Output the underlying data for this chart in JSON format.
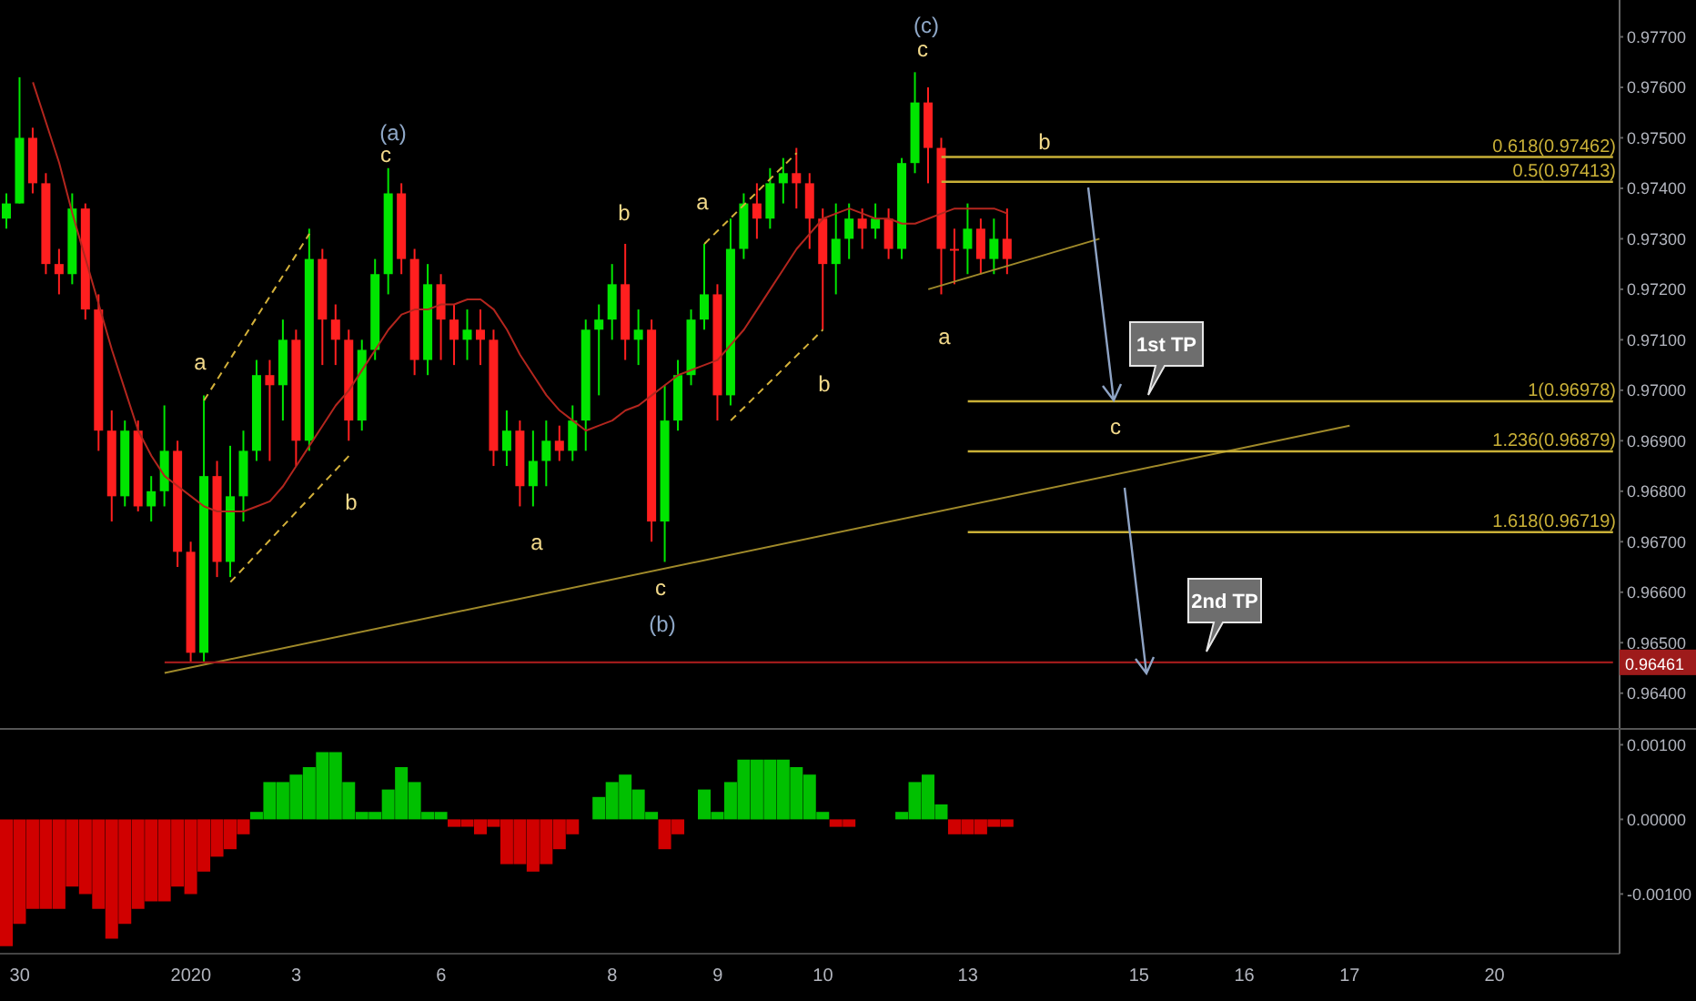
{
  "chart_data": [
    {
      "type": "candlestick",
      "categories": [
        null,
        "30",
        null,
        null,
        null,
        null,
        null,
        null,
        null,
        null,
        null,
        null,
        null,
        null,
        "2020",
        null,
        null,
        null,
        null,
        null,
        null,
        null,
        "3",
        null,
        null,
        null,
        null,
        null,
        null,
        null,
        null,
        null,
        null,
        "6",
        null,
        null,
        null,
        null,
        null,
        null,
        null,
        null,
        null,
        null,
        null,
        null,
        "8",
        null,
        null,
        null,
        null,
        null,
        null,
        null,
        "9",
        null,
        null,
        null,
        null,
        null,
        null,
        null,
        "10",
        null,
        null,
        null,
        null,
        null,
        null,
        null,
        null,
        null,
        null,
        "13",
        null,
        null,
        null,
        null,
        null,
        null,
        null,
        null,
        null,
        null,
        null,
        null,
        "15",
        null,
        null,
        null,
        null,
        null,
        null,
        null,
        "16",
        null,
        null,
        null,
        null,
        null,
        null,
        null,
        "17",
        null,
        null,
        null,
        null,
        null,
        null,
        null,
        null,
        null,
        null,
        "20",
        null,
        null,
        null,
        null,
        null,
        null,
        null,
        null,
        null
      ],
      "ohlc": [
        [
          0.9734,
          0.9739,
          0.9732,
          0.9737
        ],
        [
          0.9737,
          0.9762,
          0.9737,
          0.975
        ],
        [
          0.975,
          0.9752,
          0.9739,
          0.9741
        ],
        [
          0.9741,
          0.9743,
          0.9723,
          0.9725
        ],
        [
          0.9725,
          0.9728,
          0.9719,
          0.9723
        ],
        [
          0.9723,
          0.9739,
          0.9721,
          0.9736
        ],
        [
          0.9736,
          0.9737,
          0.9714,
          0.9716
        ],
        [
          0.9716,
          0.9719,
          0.9688,
          0.9692
        ],
        [
          0.9692,
          0.9696,
          0.9674,
          0.9679
        ],
        [
          0.9679,
          0.9694,
          0.9677,
          0.9692
        ],
        [
          0.9692,
          0.9694,
          0.9676,
          0.9677
        ],
        [
          0.9677,
          0.9683,
          0.9674,
          0.968
        ],
        [
          0.968,
          0.9697,
          0.9677,
          0.9688
        ],
        [
          0.9688,
          0.969,
          0.9665,
          0.9668
        ],
        [
          0.9668,
          0.967,
          0.9646,
          0.9648
        ],
        [
          0.9648,
          0.9699,
          0.9646,
          0.9683
        ],
        [
          0.9683,
          0.9686,
          0.9663,
          0.9666
        ],
        [
          0.9666,
          0.9689,
          0.9663,
          0.9679
        ],
        [
          0.9679,
          0.9692,
          0.9674,
          0.9688
        ],
        [
          0.9688,
          0.9706,
          0.9686,
          0.9703
        ],
        [
          0.9703,
          0.9706,
          0.9686,
          0.9701
        ],
        [
          0.9701,
          0.9714,
          0.9694,
          0.971
        ],
        [
          0.971,
          0.9712,
          0.9685,
          0.969
        ],
        [
          0.969,
          0.9732,
          0.9688,
          0.9726
        ],
        [
          0.9726,
          0.9728,
          0.9705,
          0.9714
        ],
        [
          0.9714,
          0.9717,
          0.9705,
          0.971
        ],
        [
          0.971,
          0.9712,
          0.969,
          0.9694
        ],
        [
          0.9694,
          0.971,
          0.9692,
          0.9708
        ],
        [
          0.9708,
          0.9726,
          0.9706,
          0.9723
        ],
        [
          0.9723,
          0.9744,
          0.9719,
          0.9739
        ],
        [
          0.9739,
          0.9741,
          0.9723,
          0.9726
        ],
        [
          0.9726,
          0.9728,
          0.9703,
          0.9706
        ],
        [
          0.9706,
          0.9725,
          0.9703,
          0.9721
        ],
        [
          0.9721,
          0.9723,
          0.9706,
          0.9714
        ],
        [
          0.9714,
          0.9717,
          0.9705,
          0.971
        ],
        [
          0.971,
          0.9716,
          0.9706,
          0.9712
        ],
        [
          0.9712,
          0.9716,
          0.9705,
          0.971
        ],
        [
          0.971,
          0.9712,
          0.9685,
          0.9688
        ],
        [
          0.9688,
          0.9696,
          0.9685,
          0.9692
        ],
        [
          0.9692,
          0.9694,
          0.9677,
          0.9681
        ],
        [
          0.9681,
          0.9692,
          0.9677,
          0.9686
        ],
        [
          0.9686,
          0.9694,
          0.9681,
          0.969
        ],
        [
          0.969,
          0.9693,
          0.9686,
          0.9688
        ],
        [
          0.9688,
          0.9697,
          0.9686,
          0.9694
        ],
        [
          0.9694,
          0.9714,
          0.9688,
          0.9712
        ],
        [
          0.9712,
          0.9717,
          0.9699,
          0.9714
        ],
        [
          0.9714,
          0.9725,
          0.971,
          0.9721
        ],
        [
          0.9721,
          0.9729,
          0.9706,
          0.971
        ],
        [
          0.971,
          0.9716,
          0.9705,
          0.9712
        ],
        [
          0.9712,
          0.9714,
          0.967,
          0.9674
        ],
        [
          0.9674,
          0.9701,
          0.9666,
          0.9694
        ],
        [
          0.9694,
          0.9706,
          0.9692,
          0.9703
        ],
        [
          0.9703,
          0.9716,
          0.9701,
          0.9714
        ],
        [
          0.9714,
          0.9729,
          0.9712,
          0.9719
        ],
        [
          0.9719,
          0.9721,
          0.9694,
          0.9699
        ],
        [
          0.9699,
          0.9734,
          0.9697,
          0.9728
        ],
        [
          0.9728,
          0.9739,
          0.9726,
          0.9737
        ],
        [
          0.9737,
          0.9741,
          0.973,
          0.9734
        ],
        [
          0.9734,
          0.9744,
          0.9732,
          0.9741
        ],
        [
          0.9741,
          0.9746,
          0.9737,
          0.9743
        ],
        [
          0.9743,
          0.9748,
          0.9736,
          0.9741
        ],
        [
          0.9741,
          0.9743,
          0.9728,
          0.9734
        ],
        [
          0.9734,
          0.9736,
          0.9712,
          0.9725
        ],
        [
          0.9725,
          0.9737,
          0.9719,
          0.973
        ],
        [
          0.973,
          0.9737,
          0.9726,
          0.9734
        ],
        [
          0.9734,
          0.9736,
          0.9728,
          0.9732
        ],
        [
          0.9732,
          0.9737,
          0.973,
          0.9734
        ],
        [
          0.9734,
          0.9736,
          0.9726,
          0.9728
        ],
        [
          0.9728,
          0.9746,
          0.9726,
          0.9745
        ],
        [
          0.9745,
          0.9763,
          0.9743,
          0.9757
        ],
        [
          0.9757,
          0.976,
          0.9741,
          0.9748
        ],
        [
          0.9748,
          0.975,
          0.9719,
          0.9728
        ],
        [
          0.9728,
          0.9732,
          0.9721,
          0.9728
        ],
        [
          0.9728,
          0.9737,
          0.9723,
          0.9732
        ],
        [
          0.9732,
          0.9734,
          0.9723,
          0.9726
        ],
        [
          0.9726,
          0.9734,
          0.9723,
          0.973
        ],
        [
          0.973,
          0.9736,
          0.9723,
          0.9726
        ],
        null,
        null,
        null,
        null,
        null,
        null,
        null,
        null,
        null,
        null,
        null,
        null,
        null,
        null,
        null,
        null,
        null,
        null,
        null,
        null,
        null,
        null,
        null,
        null,
        null,
        null,
        null,
        null,
        null,
        null,
        null,
        null,
        null,
        null,
        null,
        null,
        null,
        null,
        null,
        null,
        null,
        null,
        null,
        null,
        null,
        null
      ],
      "colors": [
        "#00e600",
        "#00e600",
        "#ff1f1f",
        "#ff1f1f",
        "#ff1f1f",
        "#00e600",
        "#ff1f1f",
        "#ff1f1f",
        "#ff1f1f",
        "#00e600",
        "#ff1f1f",
        "#00e600",
        "#00e600",
        "#ff1f1f",
        "#ff1f1f",
        "#00e600",
        "#ff1f1f",
        "#00e600",
        "#00e600",
        "#00e600",
        "#ff1f1f",
        "#00e600",
        "#ff1f1f",
        "#00e600",
        "#ff1f1f",
        "#ff1f1f",
        "#ff1f1f",
        "#00e600",
        "#00e600",
        "#00e600",
        "#ff1f1f",
        "#ff1f1f",
        "#00e600",
        "#ff1f1f",
        "#ff1f1f",
        "#00e600",
        "#ff1f1f",
        "#ff1f1f",
        "#00e600",
        "#ff1f1f",
        "#00e600",
        "#00e600",
        "#ff1f1f",
        "#00e600",
        "#00e600",
        "#00e600",
        "#00e600",
        "#ff1f1f",
        "#00e600",
        "#ff1f1f",
        "#00e600",
        "#00e600",
        "#00e600",
        "#00e600",
        "#ff1f1f",
        "#00e600",
        "#00e600",
        "#ff1f1f",
        "#00e600",
        "#00e600",
        "#ff1f1f",
        "#ff1f1f",
        "#ff1f1f",
        "#00e600",
        "#00e600",
        "#ff1f1f",
        "#00e600",
        "#ff1f1f",
        "#00e600",
        "#00e600",
        "#ff1f1f",
        "#ff1f1f",
        "#ff1f1f",
        "#00e600",
        "#ff1f1f",
        "#00e600",
        "#ff1f1f",
        null,
        null,
        null,
        null,
        null,
        null,
        null,
        null,
        null,
        null,
        null,
        null,
        null,
        null,
        null,
        null,
        null,
        null,
        null,
        null,
        null,
        null,
        null,
        null,
        null,
        null,
        null,
        null,
        null,
        null,
        null,
        null,
        null,
        null,
        null,
        null,
        null,
        null,
        null,
        null,
        null,
        null,
        null,
        null,
        null,
        null
      ],
      "series": [
        {
          "type": "line",
          "color": "#b3261e",
          "values": [
            null,
            null,
            0.9761,
            0.9753,
            0.9745,
            0.9735,
            0.9726,
            0.9717,
            0.9708,
            0.97,
            0.9692,
            0.9687,
            0.9683,
            0.9681,
            0.9679,
            0.9677,
            0.9676,
            0.9676,
            0.9676,
            0.9677,
            0.9678,
            0.9681,
            0.9685,
            0.9689,
            0.9693,
            0.9697,
            0.97,
            0.9704,
            0.9708,
            0.9712,
            0.9715,
            0.9716,
            0.9716,
            0.9717,
            0.9717,
            0.9718,
            0.9718,
            0.9716,
            0.9712,
            0.9707,
            0.9703,
            0.9699,
            0.9696,
            0.9694,
            0.9692,
            0.9693,
            0.9694,
            0.9696,
            0.9697,
            0.9699,
            0.9701,
            0.9703,
            0.9704,
            0.9705,
            0.9706,
            0.9709,
            0.9712,
            0.9716,
            0.972,
            0.9724,
            0.9728,
            0.9731,
            0.9734,
            0.9735,
            0.9736,
            0.9735,
            0.9734,
            0.9734,
            0.9733,
            0.9733,
            0.9734,
            0.9735,
            0.9736,
            0.9736,
            0.9736,
            0.9736,
            0.9735,
            null,
            null,
            null,
            null,
            null,
            null,
            null,
            null,
            null,
            null,
            null,
            null,
            null,
            null,
            null,
            null,
            null,
            null,
            null,
            null,
            null,
            null,
            null,
            null,
            null,
            null,
            null,
            null,
            null,
            null,
            null,
            null,
            null,
            null,
            null,
            null,
            null,
            null,
            null,
            null,
            null,
            null,
            null,
            null,
            null,
            null
          ]
        },
        {
          "type": "line",
          "color": "#a08a2a",
          "values": [
            null,
            null,
            null,
            null,
            null,
            null,
            null,
            null,
            null,
            null,
            null,
            null,
            0.9644,
            null,
            null,
            null,
            null,
            null,
            null,
            null,
            null,
            null,
            null,
            null,
            null,
            null,
            null,
            null,
            null,
            null,
            null,
            null,
            null,
            null,
            null,
            null,
            null,
            null,
            null,
            null,
            null,
            null,
            null,
            null,
            null,
            null,
            null,
            null,
            null,
            null,
            null,
            null,
            null,
            null,
            null,
            null,
            null,
            null,
            null,
            null,
            null,
            null,
            null,
            null,
            null,
            null,
            null,
            null,
            null,
            null,
            null,
            null,
            null,
            null,
            null,
            null,
            null,
            null,
            null,
            null,
            null,
            null,
            null,
            null,
            null,
            null,
            null,
            null,
            null,
            null,
            null,
            null,
            null,
            null,
            null,
            null,
            null,
            null,
            null,
            null,
            null,
            null,
            0.9693,
            null,
            null,
            null,
            null,
            null,
            null,
            null,
            null,
            null,
            null,
            null,
            null,
            null,
            null,
            null,
            null,
            null,
            null,
            null,
            null
          ]
        },
        {
          "type": "line",
          "color": "#a08a2a",
          "values": [
            null,
            null,
            null,
            null,
            null,
            null,
            null,
            null,
            null,
            null,
            null,
            null,
            null,
            null,
            null,
            null,
            null,
            null,
            null,
            null,
            null,
            null,
            null,
            null,
            null,
            null,
            null,
            null,
            null,
            null,
            null,
            null,
            null,
            null,
            null,
            null,
            null,
            null,
            null,
            null,
            null,
            null,
            null,
            null,
            null,
            null,
            null,
            null,
            null,
            null,
            null,
            null,
            null,
            null,
            null,
            null,
            null,
            null,
            null,
            null,
            null,
            null,
            null,
            null,
            null,
            null,
            null,
            null,
            null,
            null,
            0.972,
            null,
            null,
            null,
            null,
            null,
            null,
            null,
            null,
            null,
            null,
            null,
            null,
            0.973,
            null,
            null,
            null,
            null,
            null,
            null,
            null,
            null,
            null,
            null,
            null,
            null,
            null,
            null,
            null,
            null,
            null,
            null,
            null,
            null,
            null,
            null,
            null,
            null,
            null,
            null,
            null,
            null,
            null,
            null,
            null,
            null,
            null,
            null,
            null,
            null,
            null,
            null,
            null
          ]
        },
        {
          "type": "line",
          "color": "#d4b13a",
          "line_style": "dashed",
          "values": [
            null,
            null,
            null,
            null,
            null,
            null,
            null,
            null,
            null,
            null,
            null,
            null,
            null,
            null,
            null,
            0.9698,
            null,
            null,
            null,
            null,
            null,
            null,
            null,
            0.9731,
            null,
            null,
            null,
            null,
            null,
            null,
            null,
            null,
            null,
            null,
            null,
            null,
            null,
            null,
            null,
            null,
            null,
            null,
            null,
            null,
            null,
            null,
            null,
            null,
            null,
            null,
            null,
            null,
            null,
            null,
            null,
            null,
            null,
            null,
            null,
            null,
            null,
            null,
            null,
            null,
            null,
            null,
            null,
            null,
            null,
            null,
            null,
            null,
            null,
            null,
            null,
            null,
            null,
            null,
            null,
            null,
            null,
            null,
            null,
            null,
            null,
            null,
            null,
            null,
            null,
            null,
            null,
            null,
            null,
            null,
            null,
            null,
            null,
            null,
            null,
            null,
            null,
            null,
            null,
            null,
            null,
            null,
            null,
            null,
            null,
            null,
            null,
            null,
            null,
            null,
            null,
            null,
            null,
            null,
            null,
            null,
            null,
            null,
            null
          ]
        },
        {
          "type": "line",
          "color": "#d4b13a",
          "line_style": "dashed",
          "values": [
            null,
            null,
            null,
            null,
            null,
            null,
            null,
            null,
            null,
            null,
            null,
            null,
            null,
            null,
            null,
            null,
            null,
            0.9662,
            null,
            null,
            null,
            null,
            null,
            null,
            null,
            null,
            0.9687,
            null,
            null,
            null,
            null,
            null,
            null,
            null,
            null,
            null,
            null,
            null,
            null,
            null,
            null,
            null,
            null,
            null,
            null,
            null,
            null,
            null,
            null,
            null,
            null,
            null,
            null,
            null,
            null,
            null,
            null,
            null,
            null,
            null,
            null,
            null,
            null,
            null,
            null,
            null,
            null,
            null,
            null,
            null,
            null,
            null,
            null,
            null,
            null,
            null,
            null,
            null,
            null,
            null,
            null,
            null,
            null,
            null,
            null,
            null,
            null,
            null,
            null,
            null,
            null,
            null,
            null,
            null,
            null,
            null,
            null,
            null,
            null,
            null,
            null,
            null,
            null,
            null,
            null,
            null,
            null,
            null,
            null,
            null,
            null,
            null,
            null,
            null,
            null,
            null,
            null,
            null,
            null,
            null,
            null,
            null,
            null
          ]
        },
        {
          "type": "line",
          "color": "#d4b13a",
          "line_style": "dashed",
          "values": [
            null,
            null,
            null,
            null,
            null,
            null,
            null,
            null,
            null,
            null,
            null,
            null,
            null,
            null,
            null,
            null,
            null,
            null,
            null,
            null,
            null,
            null,
            null,
            null,
            null,
            null,
            null,
            null,
            null,
            null,
            null,
            null,
            null,
            null,
            null,
            null,
            null,
            null,
            null,
            null,
            null,
            null,
            null,
            null,
            null,
            null,
            null,
            null,
            null,
            null,
            null,
            null,
            null,
            0.9729,
            null,
            null,
            null,
            null,
            null,
            null,
            0.9747,
            null,
            null,
            null,
            null,
            null,
            null,
            null,
            null,
            null,
            null,
            null,
            null,
            null,
            null,
            null,
            null,
            null,
            null,
            null,
            null,
            null,
            null,
            null,
            null,
            null,
            null,
            null,
            null,
            null,
            null,
            null,
            null,
            null,
            null,
            null,
            null,
            null,
            null,
            null,
            null,
            null,
            null,
            null,
            null,
            null,
            null,
            null,
            null,
            null,
            null,
            null,
            null,
            null,
            null,
            null,
            null,
            null,
            null,
            null,
            null,
            null,
            null
          ]
        },
        {
          "type": "line",
          "color": "#d4b13a",
          "line_style": "dashed",
          "values": [
            null,
            null,
            null,
            null,
            null,
            null,
            null,
            null,
            null,
            null,
            null,
            null,
            null,
            null,
            null,
            null,
            null,
            null,
            null,
            null,
            null,
            null,
            null,
            null,
            null,
            null,
            null,
            null,
            null,
            null,
            null,
            null,
            null,
            null,
            null,
            null,
            null,
            null,
            null,
            null,
            null,
            null,
            null,
            null,
            null,
            null,
            null,
            null,
            null,
            null,
            null,
            null,
            null,
            null,
            null,
            0.9694,
            null,
            null,
            null,
            null,
            null,
            null,
            0.9712,
            null,
            null,
            null,
            null,
            null,
            null,
            null,
            null,
            null,
            null,
            null,
            null,
            null,
            null,
            null,
            null,
            null,
            null,
            null,
            null,
            null,
            null,
            null,
            null,
            null,
            null,
            null,
            null,
            null,
            null,
            null,
            null,
            null,
            null,
            null,
            null,
            null,
            null,
            null,
            null,
            null,
            null,
            null,
            null,
            null,
            null,
            null,
            null,
            null,
            null,
            null,
            null,
            null,
            null,
            null,
            null,
            null,
            null,
            null,
            null
          ]
        }
      ],
      "ylim": [
        0.96331,
        0.97773
      ],
      "yticks": [
        {
          "value": 0.964,
          "label": "0.96400"
        },
        {
          "value": 0.965,
          "label": "0.96500"
        },
        {
          "value": 0.966,
          "label": "0.96600"
        },
        {
          "value": 0.967,
          "label": "0.96700"
        },
        {
          "value": 0.968,
          "label": "0.96800"
        },
        {
          "value": 0.969,
          "label": "0.96900"
        },
        {
          "value": 0.97,
          "label": "0.97000"
        },
        {
          "value": 0.971,
          "label": "0.97100"
        },
        {
          "value": 0.972,
          "label": "0.97200"
        },
        {
          "value": 0.973,
          "label": "0.97300"
        },
        {
          "value": 0.974,
          "label": "0.97400"
        },
        {
          "value": 0.975,
          "label": "0.97500"
        },
        {
          "value": 0.976,
          "label": "0.97600"
        },
        {
          "value": 0.977,
          "label": "0.97700"
        }
      ],
      "ref_lines": [
        {
          "axis": "y",
          "value": 0.97462,
          "label": "0.618(0.97462)",
          "color": "#c9b037"
        },
        {
          "axis": "y",
          "value": 0.97413,
          "label": "0.5(0.97413)",
          "color": "#c9b037"
        },
        {
          "axis": "y",
          "value": 0.96978,
          "label": "1(0.96978)",
          "color": "#c9b037"
        },
        {
          "axis": "y",
          "value": 0.96879,
          "label": "1.236(0.96879)",
          "color": "#c9b037"
        },
        {
          "axis": "y",
          "value": 0.96719,
          "label": "1.618(0.96719)",
          "color": "#c9b037"
        },
        {
          "axis": "y",
          "value": 0.96461,
          "label": "0.96461",
          "color": "#9e1b1b"
        }
      ],
      "annotations": [
        "(c)",
        "c",
        "(a)",
        "c",
        "b",
        "a",
        "b",
        "a",
        "1st TP",
        "a",
        "b",
        {
          "text": "c",
          "y": 0.96978
        },
        "b",
        "a",
        "c",
        "2nd TP",
        "(b)"
      ],
      "tick_labels": "y"
    },
    {
      "type": "bar",
      "categories": [
        null,
        "30",
        null,
        null,
        null,
        null,
        null,
        null,
        null,
        null,
        null,
        null,
        null,
        null,
        "2020",
        null,
        null,
        null,
        null,
        null,
        null,
        null,
        "3",
        null,
        null,
        null,
        null,
        null,
        null,
        null,
        null,
        null,
        null,
        "6",
        null,
        null,
        null,
        null,
        null,
        null,
        null,
        null,
        null,
        null,
        null,
        null,
        "8",
        null,
        null,
        null,
        null,
        null,
        null,
        null,
        "9",
        null,
        null,
        null,
        null,
        null,
        null,
        null,
        "10",
        null,
        null,
        null,
        null,
        null,
        null,
        null,
        null,
        null,
        null,
        "13",
        null,
        null,
        null,
        null,
        null,
        null,
        null,
        null,
        null,
        null,
        null,
        null,
        "15",
        null,
        null,
        null,
        null,
        null,
        null,
        null,
        "16",
        null,
        null,
        null,
        null,
        null,
        null,
        null,
        "17",
        null,
        null,
        null,
        null,
        null,
        null,
        null,
        null,
        null,
        null,
        "20",
        null,
        null,
        null,
        null,
        null,
        null,
        null,
        null,
        null
      ],
      "values": [
        -0.0017,
        -0.0014,
        -0.0012,
        -0.0012,
        -0.0012,
        -0.0009,
        -0.001,
        -0.0012,
        -0.0016,
        -0.0014,
        -0.0012,
        -0.0011,
        -0.0011,
        -0.0009,
        -0.001,
        -0.0007,
        -0.0005,
        -0.0004,
        -0.0002,
        0.0001,
        0.0005,
        0.0005,
        0.0006,
        0.0007,
        0.0009,
        0.0009,
        0.0005,
        0.0001,
        0.0001,
        0.0004,
        0.0007,
        0.0005,
        0.0001,
        0.0001,
        -0.0001,
        -0.0001,
        -0.0002,
        -0.0001,
        -0.0006,
        -0.0006,
        -0.0007,
        -0.0006,
        -0.0004,
        -0.0002,
        0,
        0.0003,
        0.0005,
        0.0006,
        0.0004,
        0.0001,
        -0.0004,
        -0.0002,
        0,
        0.0004,
        0.0001,
        0.0005,
        0.0008,
        0.0008,
        0.0008,
        0.0008,
        0.0007,
        0.0006,
        0.0001,
        -0.0001,
        -0.0001,
        0,
        0,
        0,
        0.0001,
        0.0005,
        0.0006,
        0.0002,
        -0.0002,
        -0.0002,
        -0.0002,
        -0.0001,
        -0.0001,
        null,
        null,
        null,
        null,
        null,
        null,
        null,
        null,
        null,
        null,
        null,
        null,
        null,
        null,
        null,
        null,
        null,
        null,
        null,
        null,
        null,
        null,
        null,
        null,
        null,
        null,
        null,
        null,
        null,
        null,
        null,
        null,
        null,
        null,
        null,
        null,
        null,
        null,
        null,
        null,
        null,
        null,
        null,
        null,
        null,
        null
      ],
      "colors": [
        "#d00000",
        "#d00000",
        "#d00000",
        "#d00000",
        "#d00000",
        "#d00000",
        "#d00000",
        "#d00000",
        "#d00000",
        "#d00000",
        "#d00000",
        "#d00000",
        "#d00000",
        "#d00000",
        "#d00000",
        "#d00000",
        "#d00000",
        "#d00000",
        "#d00000",
        "#00c000",
        "#00c000",
        "#00c000",
        "#00c000",
        "#00c000",
        "#00c000",
        "#00c000",
        "#00c000",
        "#00c000",
        "#00c000",
        "#00c000",
        "#00c000",
        "#00c000",
        "#00c000",
        "#00c000",
        "#d00000",
        "#d00000",
        "#d00000",
        "#d00000",
        "#d00000",
        "#d00000",
        "#d00000",
        "#d00000",
        "#d00000",
        "#d00000",
        "#d00000",
        "#00c000",
        "#00c000",
        "#00c000",
        "#00c000",
        "#00c000",
        "#d00000",
        "#d00000",
        "#00c000",
        "#00c000",
        "#00c000",
        "#00c000",
        "#00c000",
        "#00c000",
        "#00c000",
        "#00c000",
        "#00c000",
        "#00c000",
        "#00c000",
        "#d00000",
        "#d00000",
        "#d00000",
        "#00c000",
        "#00c000",
        "#00c000",
        "#00c000",
        "#00c000",
        "#00c000",
        "#d00000",
        "#d00000",
        "#d00000",
        "#d00000",
        "#d00000",
        null,
        null,
        null,
        null,
        null,
        null,
        null,
        null,
        null,
        null,
        null,
        null,
        null,
        null,
        null,
        null,
        null,
        null,
        null,
        null,
        null,
        null,
        null,
        null,
        null,
        null,
        null,
        null,
        null,
        null,
        null,
        null,
        null,
        null,
        null,
        null,
        null,
        null,
        null,
        null,
        null,
        null,
        null,
        null,
        null,
        null
      ],
      "ylim": [
        -0.0018,
        0.0012
      ],
      "yticks": [
        {
          "value": -0.001,
          "label": "-0.00100"
        },
        {
          "value": 0,
          "label": "0.00000"
        },
        {
          "value": 0.001,
          "label": "0.00100"
        }
      ]
    }
  ]
}
